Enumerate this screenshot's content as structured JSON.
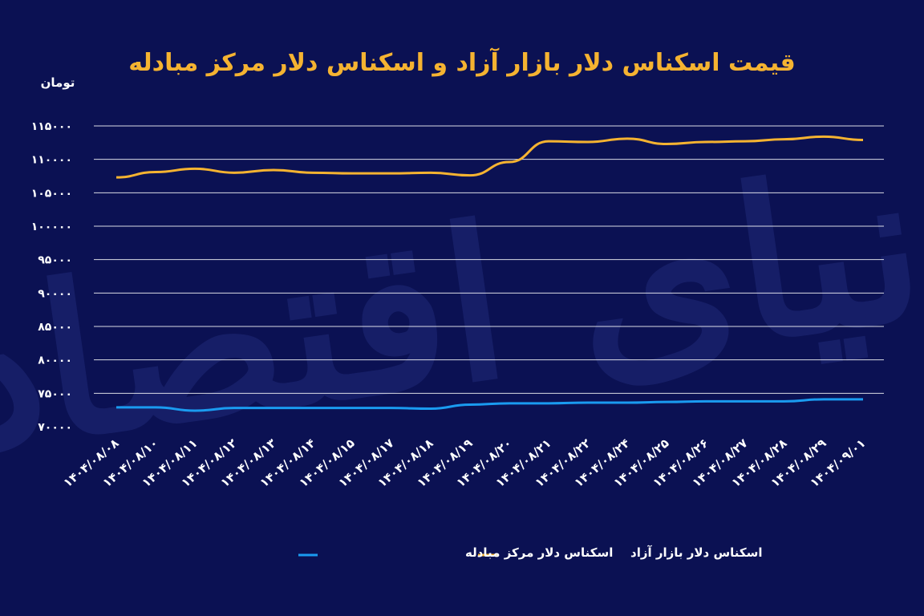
{
  "chart_data": {
    "type": "line",
    "title": "قیمت اسکناس دلار بازار آزاد و اسکناس دلار مرکز مبادله",
    "ylabel": "تومان",
    "ylim": [
      70000,
      115000
    ],
    "yticks": [
      70000,
      75000,
      80000,
      85000,
      90000,
      95000,
      100000,
      105000,
      110000,
      115000
    ],
    "ytick_labels": [
      "۷۰۰۰۰",
      "۷۵۰۰۰",
      "۸۰۰۰۰",
      "۸۵۰۰۰",
      "۹۰۰۰۰",
      "۹۵۰۰۰",
      "۱۰۰۰۰۰",
      "۱۰۵۰۰۰",
      "۱۱۰۰۰۰",
      "۱۱۵۰۰۰"
    ],
    "grid": true,
    "legend_position": "bottom",
    "categories": [
      "۱۴۰۴/۰۸/۰۸",
      "۱۴۰۴/۰۸/۱۰",
      "۱۴۰۴/۰۸/۱۱",
      "۱۴۰۴/۰۸/۱۲",
      "۱۴۰۴/۰۸/۱۳",
      "۱۴۰۴/۰۸/۱۴",
      "۱۴۰۴/۰۸/۱۵",
      "۱۴۰۴/۰۸/۱۷",
      "۱۴۰۴/۰۸/۱۸",
      "۱۴۰۴/۰۸/۱۹",
      "۱۴۰۴/۰۸/۲۰",
      "۱۴۰۴/۰۸/۲۱",
      "۱۴۰۴/۰۸/۲۲",
      "۱۴۰۴/۰۸/۲۴",
      "۱۴۰۴/۰۸/۲۵",
      "۱۴۰۴/۰۸/۲۶",
      "۱۴۰۴/۰۸/۲۷",
      "۱۴۰۴/۰۸/۲۸",
      "۱۴۰۴/۰۸/۲۹",
      "۱۴۰۴/۰۹/۰۱"
    ],
    "series": [
      {
        "name": "اسکناس دلار بازار آزاد",
        "color": "#f5b331",
        "values": [
          107300,
          108100,
          108600,
          108000,
          108400,
          108000,
          107900,
          107900,
          108000,
          107600,
          109600,
          112700,
          112600,
          113100,
          112300,
          112600,
          112700,
          113000,
          113400,
          112900
        ]
      },
      {
        "name": "اسکناس دلار مرکز مبادله",
        "color": "#1a9bf0",
        "values": [
          72900,
          72900,
          72400,
          72800,
          72800,
          72800,
          72800,
          72800,
          72700,
          73300,
          73500,
          73500,
          73600,
          73600,
          73700,
          73800,
          73800,
          73800,
          74100,
          74100
        ]
      }
    ]
  },
  "watermark_text": "دنیای اقتصاد"
}
